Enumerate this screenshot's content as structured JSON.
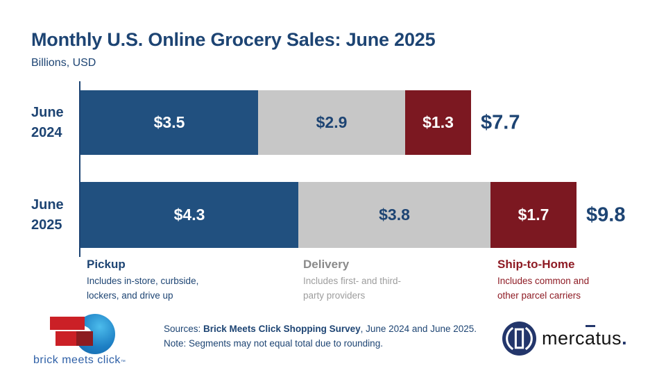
{
  "header": {
    "title": "Monthly U.S. Online Grocery Sales: June 2025",
    "subtitle": "Billions, USD"
  },
  "chart_data": {
    "type": "bar",
    "orientation": "horizontal",
    "stacked": true,
    "unit": "Billions USD",
    "categories": [
      "June\n2024",
      "June\n2025"
    ],
    "series": [
      {
        "name": "Pickup",
        "color": "#21507f",
        "label_color": "#ffffff",
        "values": [
          3.5,
          4.3
        ]
      },
      {
        "name": "Delivery",
        "color": "#c7c7c7",
        "label_color": "#1d4473",
        "values": [
          2.9,
          3.8
        ]
      },
      {
        "name": "Ship-to-Home",
        "color": "#7c1821",
        "label_color": "#ffffff",
        "values": [
          1.3,
          1.7
        ]
      }
    ],
    "data_labels": [
      [
        "$3.5",
        "$2.9",
        "$1.3"
      ],
      [
        "$4.3",
        "$3.8",
        "$1.7"
      ]
    ],
    "totals": [
      "$7.7",
      "$9.8"
    ],
    "xlim": [
      0,
      9.8
    ],
    "grid": false,
    "legend_position": "below"
  },
  "legend": {
    "items": [
      {
        "title": "Pickup",
        "description": "Includes in-store, curbside,\nlockers, and drive up",
        "color": "#21507f"
      },
      {
        "title": "Delivery",
        "description": "Includes first- and third-\nparty providers",
        "color": "#c7c7c7"
      },
      {
        "title": "Ship-to-Home",
        "description": "Includes common and\nother parcel carriers",
        "color": "#7c1821"
      }
    ]
  },
  "footer": {
    "sources_prefix": "Sources: ",
    "sources_bold": "Brick Meets Click Shopping Survey",
    "sources_suffix": ", June 2024 and June 2025.",
    "note": "Note: Segments may not equal total due to rounding.",
    "brick_meets_click": {
      "text": "brick meets click",
      "trademark": "™"
    },
    "mercatus": {
      "part1": "merc",
      "part2": "a",
      "part3": "tus",
      "dot": "."
    }
  }
}
